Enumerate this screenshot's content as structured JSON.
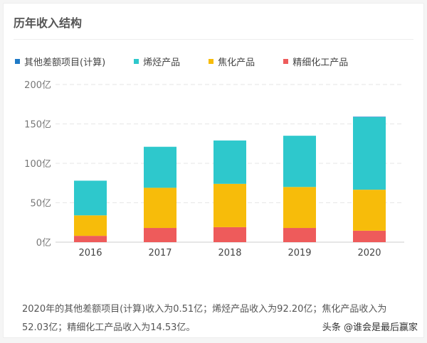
{
  "title": "历年收入结构",
  "chart_data": {
    "type": "bar",
    "stacked": true,
    "categories": [
      "2016",
      "2017",
      "2018",
      "2019",
      "2020"
    ],
    "series": [
      {
        "name": "其他差额项目(计算)",
        "color": "#1f7ac6",
        "values": [
          0,
          0,
          0,
          0,
          0.51
        ]
      },
      {
        "name": "烯烃产品",
        "color": "#2ec8cc",
        "values": [
          44,
          52,
          55,
          65,
          92.2
        ]
      },
      {
        "name": "焦化产品",
        "color": "#f7bc0a",
        "values": [
          26,
          51,
          55,
          52,
          52.03
        ]
      },
      {
        "name": "精细化工产品",
        "color": "#ee5b5b",
        "values": [
          8,
          18,
          19,
          18,
          14.53
        ]
      }
    ],
    "yticks": [
      "0亿",
      "50亿",
      "100亿",
      "150亿",
      "200亿"
    ],
    "ylim": [
      0,
      200
    ],
    "grid": true,
    "legend": "top-left"
  },
  "description": "2020年的其他差额项目(计算)收入为0.51亿；烯烃产品收入为92.20亿；焦化产品收入为52.03亿；精细化工产品收入为14.53亿。",
  "watermark": "头条 @谁会是最后赢家"
}
